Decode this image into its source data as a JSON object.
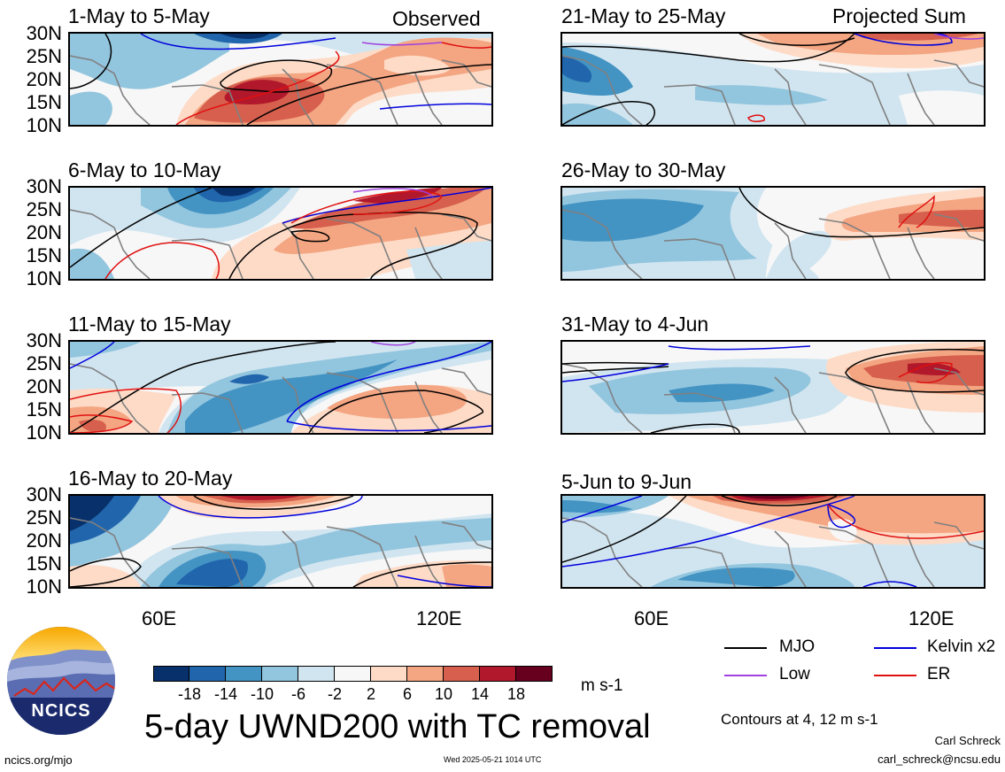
{
  "panels": [
    {
      "id": "p1",
      "title": "1-May to 5-May",
      "label": "Observed"
    },
    {
      "id": "p2",
      "title": "6-May to 10-May",
      "label": ""
    },
    {
      "id": "p3",
      "title": "11-May to 15-May",
      "label": ""
    },
    {
      "id": "p4",
      "title": "16-May to 20-May",
      "label": ""
    },
    {
      "id": "p5",
      "title": "21-May to 25-May",
      "label": "Projected Sum"
    },
    {
      "id": "p6",
      "title": "26-May to 30-May",
      "label": ""
    },
    {
      "id": "p7",
      "title": "31-May to 4-Jun",
      "label": ""
    },
    {
      "id": "p8",
      "title": "5-Jun to 9-Jun",
      "label": ""
    }
  ],
  "lat_ticks": [
    "30N",
    "25N",
    "20N",
    "15N",
    "10N"
  ],
  "lon_ticks": [
    "60E",
    "120E"
  ],
  "colorbar": {
    "labels": [
      "-18",
      "-14",
      "-10",
      "-6",
      "-2",
      "2",
      "6",
      "10",
      "14",
      "18"
    ],
    "colors": [
      "#08306b",
      "#2166ac",
      "#4393c3",
      "#92c5de",
      "#d1e5f0",
      "#f7f7f7",
      "#fddbc7",
      "#f4a582",
      "#d6604d",
      "#b2182b",
      "#67001f"
    ],
    "units": "m s-1"
  },
  "legend": {
    "mjo": {
      "label": "MJO",
      "color": "#000000"
    },
    "kelvin": {
      "label": "Kelvin x2",
      "color": "#0000dd"
    },
    "low": {
      "label": "Low",
      "color": "#a040e0"
    },
    "er": {
      "label": "ER",
      "color": "#e01010"
    },
    "contours_note": "Contours at 4, 12 m s-1"
  },
  "main_title": "5-day UWND200 with TC removal",
  "logo": {
    "text": "NCICS"
  },
  "footer": {
    "url": "ncics.org/mjo",
    "timestamp": "Wed 2025-05-21 1014 UTC",
    "author": "Carl Schreck",
    "email": "carl_schreck@ncsu.edu"
  }
}
